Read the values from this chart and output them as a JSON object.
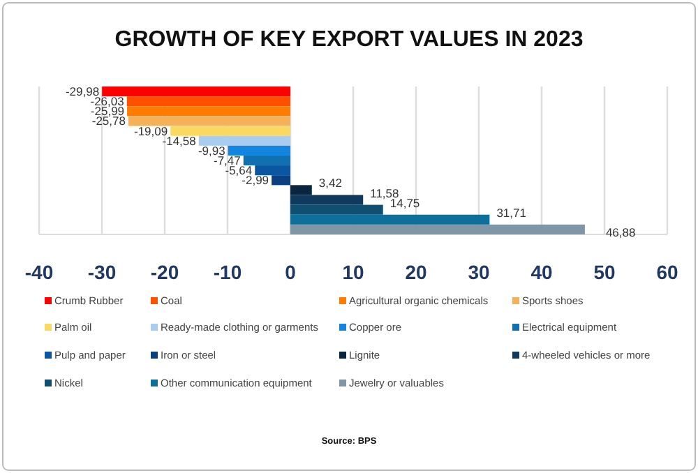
{
  "chart_data": {
    "type": "bar",
    "orientation": "horizontal",
    "title": "GROWTH OF KEY EXPORT VALUES IN 2023",
    "categories": [
      null,
      null,
      null,
      null,
      null,
      null,
      null,
      null,
      null,
      null,
      null,
      null,
      null,
      null,
      null
    ],
    "series": [
      {
        "name": "Crumb Rubber",
        "color": "#ff0000",
        "values": [
          -29.98,
          null,
          null,
          null,
          null,
          null,
          null,
          null,
          null,
          null,
          null,
          null,
          null,
          null,
          null
        ],
        "value_labels": [
          "-29,98",
          null,
          null,
          null,
          null,
          null,
          null,
          null,
          null,
          null,
          null,
          null,
          null,
          null,
          null
        ]
      },
      {
        "name": "Coal",
        "color": "#ff5000",
        "values": [
          null,
          -26.03,
          null,
          null,
          null,
          null,
          null,
          null,
          null,
          null,
          null,
          null,
          null,
          null,
          null
        ],
        "value_labels": [
          null,
          "-26,03",
          null,
          null,
          null,
          null,
          null,
          null,
          null,
          null,
          null,
          null,
          null,
          null,
          null
        ]
      },
      {
        "name": "Agricultural organic chemicals",
        "color": "#ff7c00",
        "values": [
          null,
          null,
          -25.99,
          null,
          null,
          null,
          null,
          null,
          null,
          null,
          null,
          null,
          null,
          null,
          null
        ],
        "value_labels": [
          null,
          null,
          "-25,99",
          null,
          null,
          null,
          null,
          null,
          null,
          null,
          null,
          null,
          null,
          null,
          null
        ]
      },
      {
        "name": "Sports shoes",
        "color": "#f4b15a",
        "values": [
          null,
          null,
          null,
          -25.78,
          null,
          null,
          null,
          null,
          null,
          null,
          null,
          null,
          null,
          null,
          null
        ],
        "value_labels": [
          null,
          null,
          null,
          "-25,78",
          null,
          null,
          null,
          null,
          null,
          null,
          null,
          null,
          null,
          null,
          null
        ]
      },
      {
        "name": "Palm oil",
        "color": "#f9d960",
        "values": [
          null,
          null,
          null,
          null,
          -19.09,
          null,
          null,
          null,
          null,
          null,
          null,
          null,
          null,
          null,
          null
        ],
        "value_labels": [
          null,
          null,
          null,
          null,
          "-19,09",
          null,
          null,
          null,
          null,
          null,
          null,
          null,
          null,
          null,
          null
        ]
      },
      {
        "name": "Ready-made clothing or garments",
        "color": "#a9cdf0",
        "values": [
          null,
          null,
          null,
          null,
          null,
          -14.58,
          null,
          null,
          null,
          null,
          null,
          null,
          null,
          null,
          null
        ],
        "value_labels": [
          null,
          null,
          null,
          null,
          null,
          "-14,58",
          null,
          null,
          null,
          null,
          null,
          null,
          null,
          null,
          null
        ]
      },
      {
        "name": "Copper ore",
        "color": "#1185e0",
        "values": [
          null,
          null,
          null,
          null,
          null,
          null,
          -9.93,
          null,
          null,
          null,
          null,
          null,
          null,
          null,
          null
        ],
        "value_labels": [
          null,
          null,
          null,
          null,
          null,
          null,
          "-9,93",
          null,
          null,
          null,
          null,
          null,
          null,
          null,
          null
        ]
      },
      {
        "name": "Electrical equipment",
        "color": "#1070b0",
        "values": [
          null,
          null,
          null,
          null,
          null,
          null,
          null,
          -7.47,
          null,
          null,
          null,
          null,
          null,
          null,
          null
        ],
        "value_labels": [
          null,
          null,
          null,
          null,
          null,
          null,
          null,
          "-7,47",
          null,
          null,
          null,
          null,
          null,
          null,
          null
        ]
      },
      {
        "name": "Pulp and paper",
        "color": "#0b56a0",
        "values": [
          null,
          null,
          null,
          null,
          null,
          null,
          null,
          null,
          -5.64,
          null,
          null,
          null,
          null,
          null,
          null
        ],
        "value_labels": [
          null,
          null,
          null,
          null,
          null,
          null,
          null,
          null,
          "-5,64",
          null,
          null,
          null,
          null,
          null,
          null
        ]
      },
      {
        "name": "Iron or steel",
        "color": "#0a4080",
        "values": [
          null,
          null,
          null,
          null,
          null,
          null,
          null,
          null,
          null,
          -2.99,
          null,
          null,
          null,
          null,
          null
        ],
        "value_labels": [
          null,
          null,
          null,
          null,
          null,
          null,
          null,
          null,
          null,
          "-2,99",
          null,
          null,
          null,
          null,
          null
        ]
      },
      {
        "name": "Lignite",
        "color": "#0a2540",
        "values": [
          null,
          null,
          null,
          null,
          null,
          null,
          null,
          null,
          null,
          null,
          3.42,
          null,
          null,
          null,
          null
        ],
        "value_labels": [
          null,
          null,
          null,
          null,
          null,
          null,
          null,
          null,
          null,
          null,
          "3,42",
          null,
          null,
          null,
          null
        ]
      },
      {
        "name": "4-wheeled vehicles or more",
        "color": "#0e3a5e",
        "values": [
          null,
          null,
          null,
          null,
          null,
          null,
          null,
          null,
          null,
          null,
          null,
          11.58,
          null,
          null,
          null
        ],
        "value_labels": [
          null,
          null,
          null,
          null,
          null,
          null,
          null,
          null,
          null,
          null,
          null,
          "11,58",
          null,
          null,
          null
        ]
      },
      {
        "name": "Nickel",
        "color": "#104f70",
        "values": [
          null,
          null,
          null,
          null,
          null,
          null,
          null,
          null,
          null,
          null,
          null,
          null,
          14.75,
          null,
          null
        ],
        "value_labels": [
          null,
          null,
          null,
          null,
          null,
          null,
          null,
          null,
          null,
          null,
          null,
          null,
          "14,75",
          null,
          null
        ]
      },
      {
        "name": "Other communication equipment",
        "color": "#0e6f9a",
        "values": [
          null,
          null,
          null,
          null,
          null,
          null,
          null,
          null,
          null,
          null,
          null,
          null,
          null,
          31.71,
          null
        ],
        "value_labels": [
          null,
          null,
          null,
          null,
          null,
          null,
          null,
          null,
          null,
          null,
          null,
          null,
          null,
          "31,71",
          null
        ]
      },
      {
        "name": "Jewelry or valuables",
        "color": "#7f96a6",
        "values": [
          null,
          null,
          null,
          null,
          null,
          null,
          null,
          null,
          null,
          null,
          null,
          null,
          null,
          null,
          46.88
        ],
        "value_labels": [
          null,
          null,
          null,
          null,
          null,
          null,
          null,
          null,
          null,
          null,
          null,
          null,
          null,
          null,
          "46,88"
        ]
      }
    ],
    "xlim": [
      -40,
      60
    ],
    "xticks": [
      -40,
      -30,
      -20,
      -10,
      0,
      10,
      20,
      30,
      40,
      50,
      60
    ],
    "grid": "x",
    "legend": "bottom",
    "stacked": true,
    "annotations": [
      "Source: BPS"
    ]
  }
}
